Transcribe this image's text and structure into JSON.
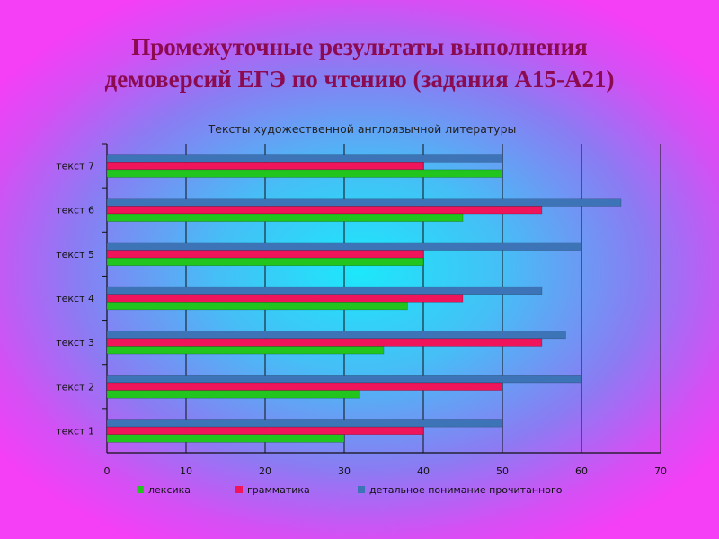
{
  "slide": {
    "title_line1": "Промежуточные результаты выполнения",
    "title_line2": "демоверсий ЕГЭ по чтению (задания А15-А21)"
  },
  "chart_data": {
    "type": "bar",
    "orientation": "horizontal",
    "title": "Тексты художественной англоязычной литературы",
    "categories": [
      "текст 1",
      "текст 2",
      "текст 3",
      "текст 4",
      "текст 5",
      "текст 6",
      "текст 7"
    ],
    "series": [
      {
        "name": "лексика",
        "color": "#22c51e",
        "values": [
          30,
          32,
          35,
          38,
          40,
          45,
          50
        ]
      },
      {
        "name": "грамматика",
        "color": "#f0145a",
        "values": [
          40,
          50,
          55,
          45,
          40,
          55,
          40
        ]
      },
      {
        "name": "детальное понимание прочитанного",
        "color": "#3d74b8",
        "values": [
          50,
          60,
          58,
          55,
          60,
          65,
          50
        ]
      }
    ],
    "xlim": [
      0,
      70
    ],
    "xticks": [
      0,
      10,
      20,
      30,
      40,
      50,
      60,
      70
    ],
    "xlabel": "",
    "ylabel": "",
    "grid": true,
    "legend": "bottom"
  }
}
